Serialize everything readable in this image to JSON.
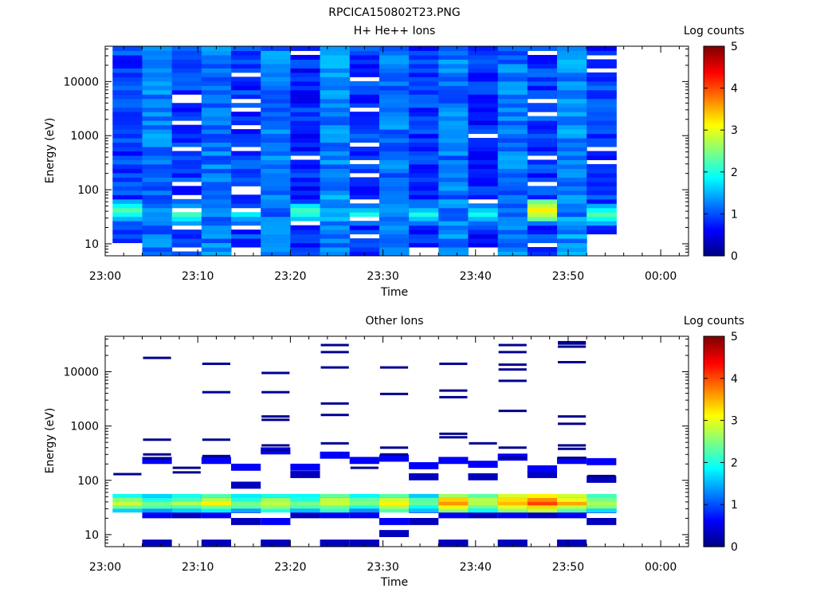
{
  "figure_title": "RPCICA150802T23.PNG",
  "chart_data": [
    {
      "type": "heatmap",
      "title": "H+ He++ Ions",
      "xlabel": "Time",
      "ylabel": "Energy (eV)",
      "colorbar_label": "Log counts",
      "x_ticks": [
        "23:00",
        "23:10",
        "23:20",
        "23:30",
        "23:40",
        "23:50",
        "00:00"
      ],
      "x_range_minutes": [
        0,
        63
      ],
      "y_scale": "log",
      "y_ticks": [
        "10",
        "100",
        "1000",
        "10000"
      ],
      "y_range": [
        6,
        45000
      ],
      "colorbar_ticks": [
        "0",
        "1",
        "2",
        "3",
        "4",
        "5"
      ],
      "colorbar_range": [
        0,
        5
      ],
      "colormap": "jet",
      "scans": [
        {
          "start": 0.8,
          "end": 4.0,
          "emin": 9.5,
          "emax": 42000,
          "base": 0.9,
          "var": 0.3,
          "gap": 0.05,
          "peak": {
            "e": 42,
            "level": 2.3
          }
        },
        {
          "start": 4.0,
          "end": 7.2,
          "emin": 6,
          "emax": 42000,
          "base": 1.2,
          "var": 0.3,
          "gap": 0.0,
          "peak": {
            "e": 35,
            "level": 1.0
          }
        },
        {
          "start": 7.2,
          "end": 10.4,
          "emin": 6,
          "emax": 42000,
          "base": 0.9,
          "var": 0.3,
          "gap": 0.08,
          "peak": {
            "e": 35,
            "level": 2.2
          }
        },
        {
          "start": 10.4,
          "end": 13.6,
          "emin": 6,
          "emax": 42000,
          "base": 1.2,
          "var": 0.3,
          "gap": 0.0,
          "peak": {
            "e": 38,
            "level": 1.0
          }
        },
        {
          "start": 13.6,
          "end": 16.8,
          "emin": 9.5,
          "emax": 42000,
          "base": 0.9,
          "var": 0.3,
          "gap": 0.08,
          "peak": {
            "e": 35,
            "level": 1.8
          }
        },
        {
          "start": 16.8,
          "end": 20.0,
          "emin": 6,
          "emax": 42000,
          "base": 1.2,
          "var": 0.3,
          "gap": 0.0,
          "peak": {
            "e": 38,
            "level": 1.0
          }
        },
        {
          "start": 20.0,
          "end": 23.2,
          "emin": 6,
          "emax": 42000,
          "base": 0.8,
          "var": 0.3,
          "gap": 0.06,
          "peak": {
            "e": 40,
            "level": 2.3
          }
        },
        {
          "start": 23.2,
          "end": 26.4,
          "emin": 6,
          "emax": 42000,
          "base": 1.3,
          "var": 0.3,
          "gap": 0.04,
          "peak": {
            "e": 35,
            "level": 1.2
          }
        },
        {
          "start": 26.4,
          "end": 29.6,
          "emin": 6,
          "emax": 42000,
          "base": 0.9,
          "var": 0.3,
          "gap": 0.1,
          "peak": {
            "e": 35,
            "level": 2.0
          }
        },
        {
          "start": 29.6,
          "end": 32.8,
          "emin": 6,
          "emax": 42000,
          "base": 1.2,
          "var": 0.3,
          "gap": 0.0,
          "peak": {
            "e": 38,
            "level": 1.0
          }
        },
        {
          "start": 32.8,
          "end": 36.0,
          "emin": 9.5,
          "emax": 42000,
          "base": 0.9,
          "var": 0.3,
          "gap": 0.05,
          "peak": {
            "e": 35,
            "level": 2.0
          }
        },
        {
          "start": 36.0,
          "end": 39.2,
          "emin": 6,
          "emax": 42000,
          "base": 1.2,
          "var": 0.3,
          "gap": 0.0,
          "peak": {
            "e": 38,
            "level": 1.1
          }
        },
        {
          "start": 39.2,
          "end": 42.4,
          "emin": 9.5,
          "emax": 42000,
          "base": 0.8,
          "var": 0.3,
          "gap": 0.06,
          "peak": {
            "e": 36,
            "level": 2.0
          }
        },
        {
          "start": 42.4,
          "end": 45.6,
          "emin": 6,
          "emax": 42000,
          "base": 1.2,
          "var": 0.3,
          "gap": 0.0,
          "peak": {
            "e": 38,
            "level": 1.2
          }
        },
        {
          "start": 45.6,
          "end": 48.8,
          "emin": 6,
          "emax": 42000,
          "base": 0.9,
          "var": 0.3,
          "gap": 0.12,
          "peak": {
            "e": 42,
            "level": 3.2
          }
        },
        {
          "start": 48.8,
          "end": 52.0,
          "emin": 6,
          "emax": 42000,
          "base": 1.3,
          "var": 0.3,
          "gap": 0.0,
          "peak": {
            "e": 38,
            "level": 1.0
          }
        },
        {
          "start": 52.0,
          "end": 55.2,
          "emin": 15,
          "emax": 42000,
          "base": 0.9,
          "var": 0.3,
          "gap": 0.06,
          "peak": {
            "e": 35,
            "level": 2.3
          }
        }
      ]
    },
    {
      "type": "heatmap",
      "title": "Other Ions",
      "xlabel": "Time",
      "ylabel": "Energy (eV)",
      "colorbar_label": "Log counts",
      "x_ticks": [
        "23:00",
        "23:10",
        "23:20",
        "23:30",
        "23:40",
        "23:50",
        "00:00"
      ],
      "x_range_minutes": [
        0,
        63
      ],
      "y_scale": "log",
      "y_ticks": [
        "10",
        "100",
        "1000",
        "10000"
      ],
      "y_range": [
        6,
        45000
      ],
      "colorbar_ticks": [
        "0",
        "1",
        "2",
        "3",
        "4",
        "5"
      ],
      "colorbar_range": [
        0,
        5
      ],
      "colormap": "jet",
      "bands": [
        {
          "e": 28,
          "level": 1.5
        },
        {
          "e": 33,
          "level": 2.1
        },
        {
          "e": 38,
          "level": 2.5
        },
        {
          "e": 44,
          "level": 2.2
        },
        {
          "e": 52,
          "level": 1.8
        }
      ],
      "scans": [
        {
          "start": 0.8,
          "end": 4.0,
          "hot": 0.2,
          "low": [],
          "lines": [
            130
          ]
        },
        {
          "start": 4.0,
          "end": 7.2,
          "hot": 0.0,
          "low": [
            6,
            20,
            40,
            200
          ],
          "lines": [
            250,
            300,
            560,
            18000
          ]
        },
        {
          "start": 7.2,
          "end": 10.4,
          "hot": 0.1,
          "low": [
            20,
            25
          ],
          "lines": [
            140,
            170
          ]
        },
        {
          "start": 10.4,
          "end": 13.6,
          "hot": 0.5,
          "low": [
            6,
            20,
            40,
            200
          ],
          "lines": [
            280,
            560,
            4200,
            14000
          ]
        },
        {
          "start": 13.6,
          "end": 16.8,
          "hot": 0.0,
          "low": [
            15,
            25,
            70,
            150
          ],
          "lines": []
        },
        {
          "start": 16.8,
          "end": 20.0,
          "hot": 0.3,
          "low": [
            6,
            15,
            40,
            300
          ],
          "lines": [
            360,
            440,
            1300,
            1500,
            4200,
            9500
          ]
        },
        {
          "start": 20.0,
          "end": 23.2,
          "hot": 0.0,
          "low": [
            20,
            25,
            110,
            150
          ],
          "lines": []
        },
        {
          "start": 23.2,
          "end": 26.4,
          "hot": 0.4,
          "low": [
            6,
            20,
            40,
            250
          ],
          "lines": [
            480,
            1600,
            2600,
            12000,
            23000,
            31000
          ]
        },
        {
          "start": 26.4,
          "end": 29.6,
          "hot": 0.0,
          "low": [
            6,
            20,
            25,
            200
          ],
          "lines": [
            170
          ]
        },
        {
          "start": 29.6,
          "end": 32.8,
          "hot": 0.6,
          "low": [
            9,
            15,
            40,
            220
          ],
          "lines": [
            300,
            400,
            3900,
            12000
          ]
        },
        {
          "start": 32.8,
          "end": 36.0,
          "hot": 0.0,
          "low": [
            15,
            25,
            100,
            160
          ],
          "lines": []
        },
        {
          "start": 36.0,
          "end": 39.2,
          "hot": 1.0,
          "low": [
            6,
            20,
            40,
            200
          ],
          "lines": [
            620,
            720,
            3400,
            4500,
            14000
          ]
        },
        {
          "start": 39.2,
          "end": 42.4,
          "hot": 0.4,
          "low": [
            20,
            25,
            100,
            170
          ],
          "lines": [
            480
          ]
        },
        {
          "start": 42.4,
          "end": 45.6,
          "hot": 0.9,
          "low": [
            6,
            20,
            40,
            230
          ],
          "lines": [
            260,
            400,
            1900,
            6800,
            11000,
            13500,
            23000,
            31000
          ]
        },
        {
          "start": 45.6,
          "end": 48.8,
          "hot": 1.4,
          "low": [
            20,
            25,
            110,
            140
          ],
          "lines": []
        },
        {
          "start": 48.8,
          "end": 52.0,
          "hot": 0.9,
          "low": [
            6,
            20,
            40,
            200
          ],
          "lines": [
            260,
            380,
            440,
            1100,
            1500,
            15000,
            29000,
            33000,
            35000
          ]
        },
        {
          "start": 52.0,
          "end": 55.2,
          "hot": 0.4,
          "low": [
            15,
            25,
            90,
            190
          ],
          "lines": [
            120
          ]
        }
      ]
    }
  ]
}
